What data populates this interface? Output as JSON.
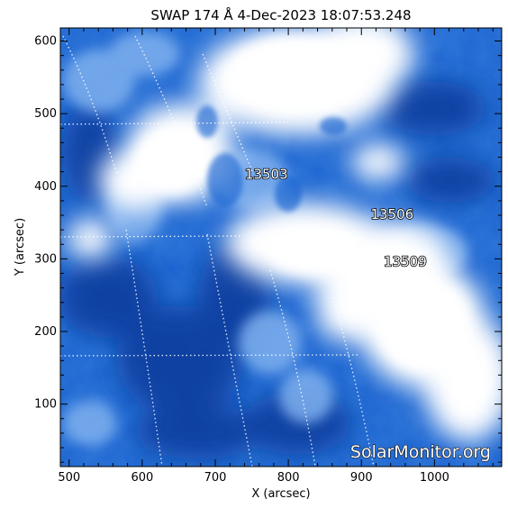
{
  "title": "SWAP 174 Å  4-Dec-2023 18:07:53.248",
  "x_axis": {
    "label": "X (arcsec)",
    "range": [
      488,
      1092
    ],
    "ticks": [
      "500",
      "600",
      "700",
      "800",
      "900",
      "1000"
    ],
    "tick_values": [
      500,
      600,
      700,
      800,
      900,
      1000
    ]
  },
  "y_axis": {
    "label": "Y (arcsec)",
    "range": [
      14,
      618
    ],
    "ticks": [
      "100",
      "200",
      "300",
      "400",
      "500",
      "600"
    ],
    "tick_values": [
      100,
      200,
      300,
      400,
      500,
      600
    ]
  },
  "regions": [
    {
      "label": "13503",
      "x": 770,
      "y": 410
    },
    {
      "label": "13506",
      "x": 942,
      "y": 355
    },
    {
      "label": "13509",
      "x": 960,
      "y": 290
    }
  ],
  "watermark": "SolarMonitor.org",
  "colors": {
    "deep": "#0a3c9e",
    "mid": "#1f66d1",
    "light": "#7fb0ee",
    "bright": "#ffffff"
  }
}
